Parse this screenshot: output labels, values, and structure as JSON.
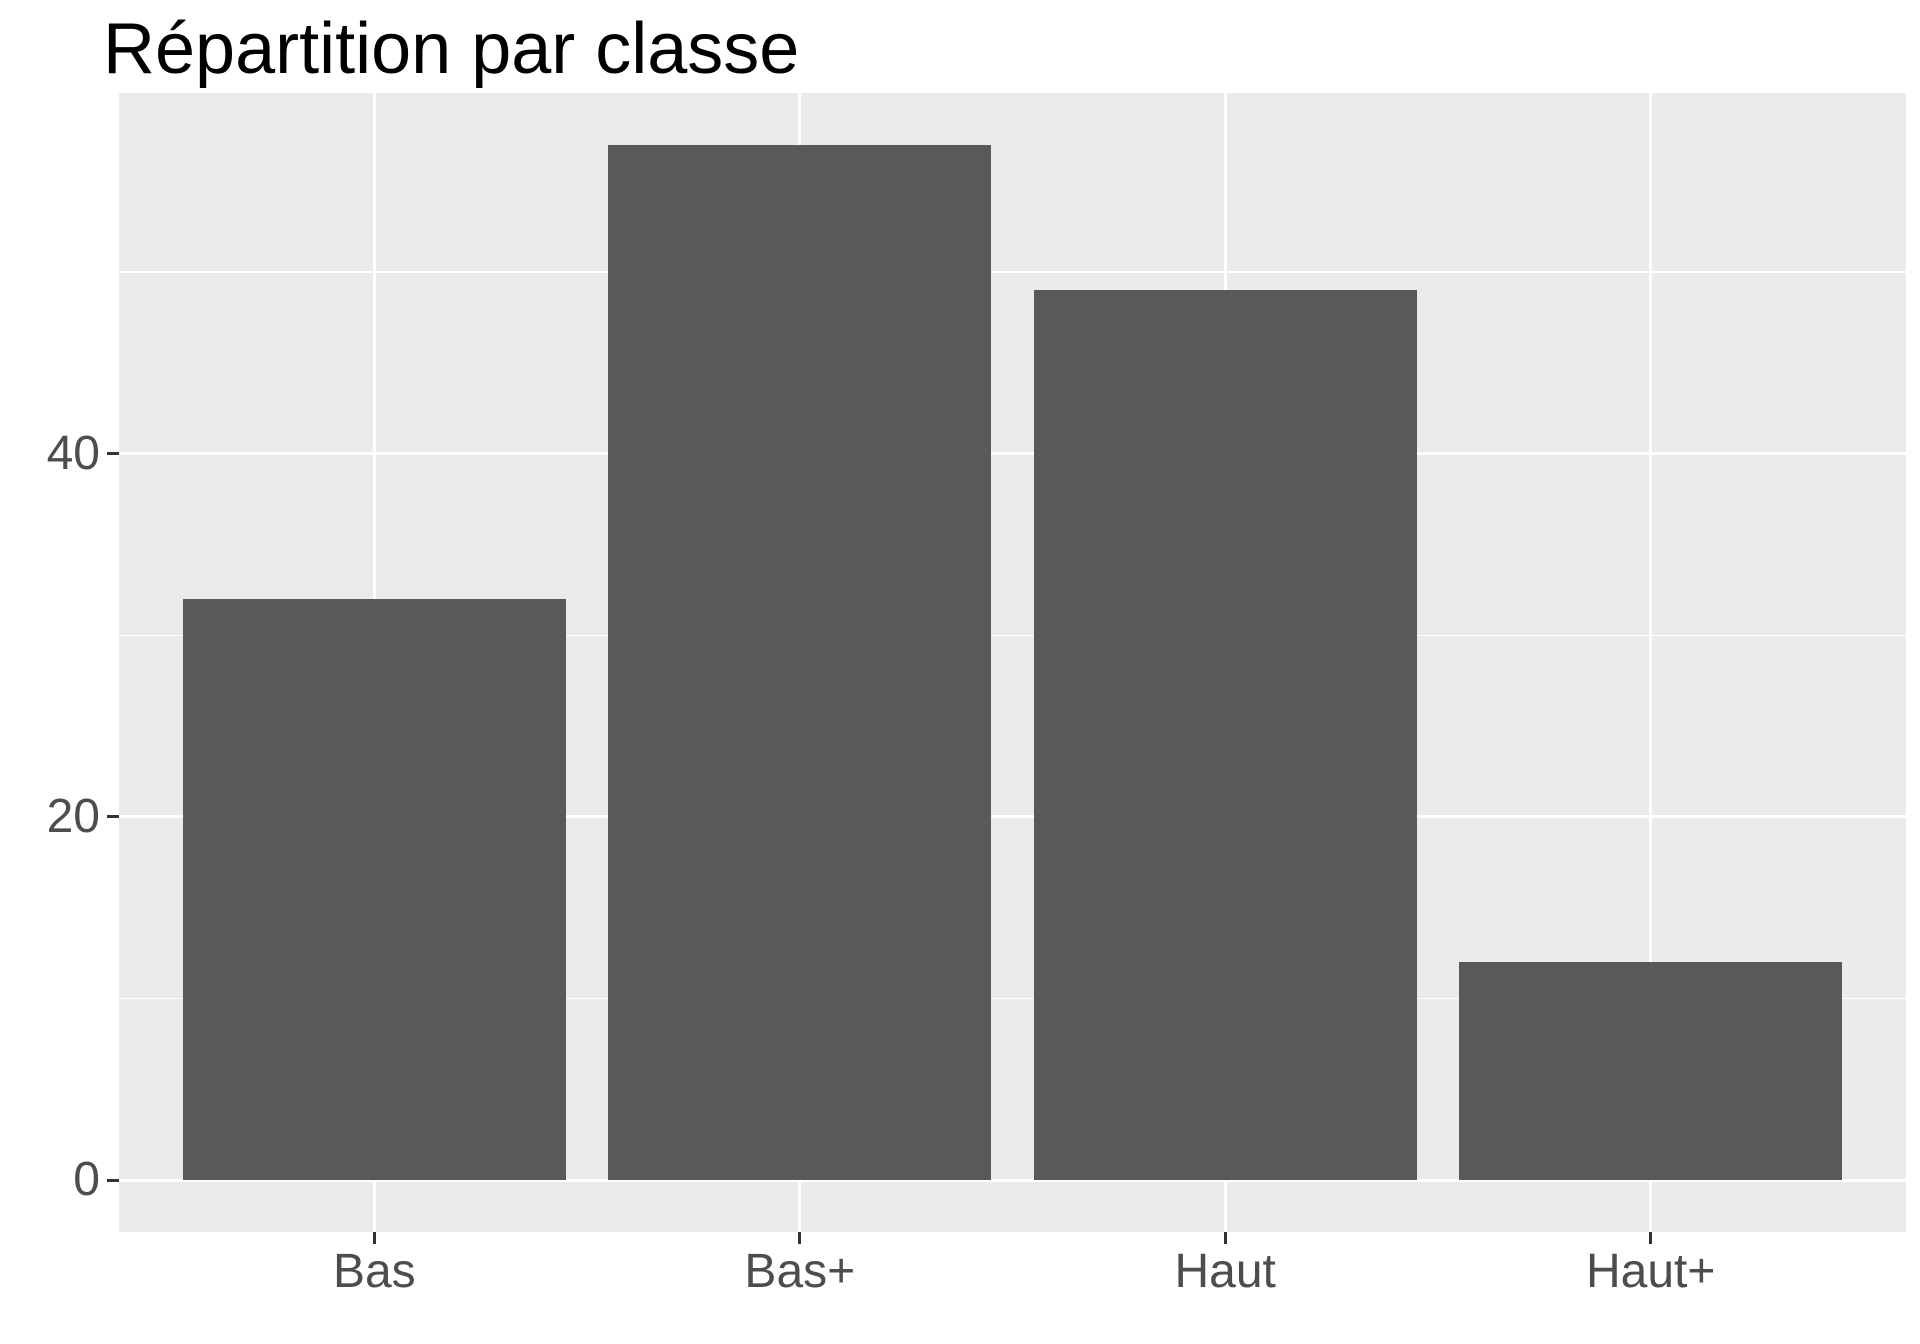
{
  "title": "Répartition par classe",
  "chart_data": {
    "type": "bar",
    "title": "Répartition par classe",
    "categories": [
      "Bas",
      "Bas+",
      "Haut",
      "Haut+"
    ],
    "values": [
      32,
      57,
      49,
      12
    ],
    "xlabel": "",
    "ylabel": "",
    "ylim": [
      -2.85,
      59.85
    ],
    "yticks": [
      0,
      20,
      40
    ],
    "ytick_labels": [
      "0",
      "20",
      "40"
    ],
    "yminor": [
      10,
      30,
      50
    ],
    "x_range": [
      0.4,
      4.6
    ],
    "bar_width_units": 0.9,
    "grid": "on",
    "legend": "none",
    "colors": {
      "bar_fill": "#595959",
      "panel_background": "#EBEBEB",
      "grid_major": "#FFFFFF",
      "grid_minor": "#FFFFFF",
      "axis_text": "#4D4D4D",
      "tick_mark": "#333333",
      "title_text": "#000000",
      "figure_background": "#FFFFFF"
    }
  }
}
